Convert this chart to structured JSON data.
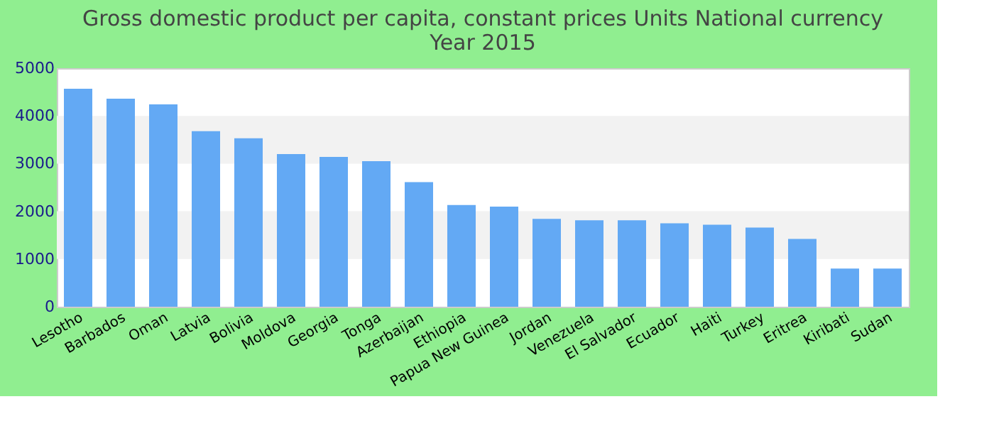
{
  "chart_data": {
    "type": "bar",
    "title": [
      "Gross domestic product per capita, constant prices Units National currency",
      "Year 2015"
    ],
    "categories": [
      "Lesotho",
      "Barbados",
      "Oman",
      "Latvia",
      "Bolivia",
      "Moldova",
      "Georgia",
      "Tonga",
      "Azerbaijan",
      "Ethiopia",
      "Papua New Guinea",
      "Jordan",
      "Venezuela",
      "El Salvador",
      "Ecuador",
      "Haiti",
      "Turkey",
      "Eritrea",
      "Kiribati",
      "Sudan"
    ],
    "values": [
      4570,
      4360,
      4240,
      3680,
      3530,
      3200,
      3140,
      3050,
      2610,
      2130,
      2100,
      1840,
      1810,
      1810,
      1750,
      1720,
      1660,
      1420,
      800,
      800
    ],
    "color": "#63a9f4",
    "ylim": [
      0,
      5000
    ],
    "yticks": [
      0,
      1000,
      2000,
      3000,
      4000,
      5000
    ],
    "bands": [
      {
        "axis": "y",
        "from": 1000,
        "to": 2000,
        "color": "#f2f2f2"
      },
      {
        "axis": "y",
        "from": 3000,
        "to": 4000,
        "color": "#f2f2f2"
      }
    ]
  }
}
